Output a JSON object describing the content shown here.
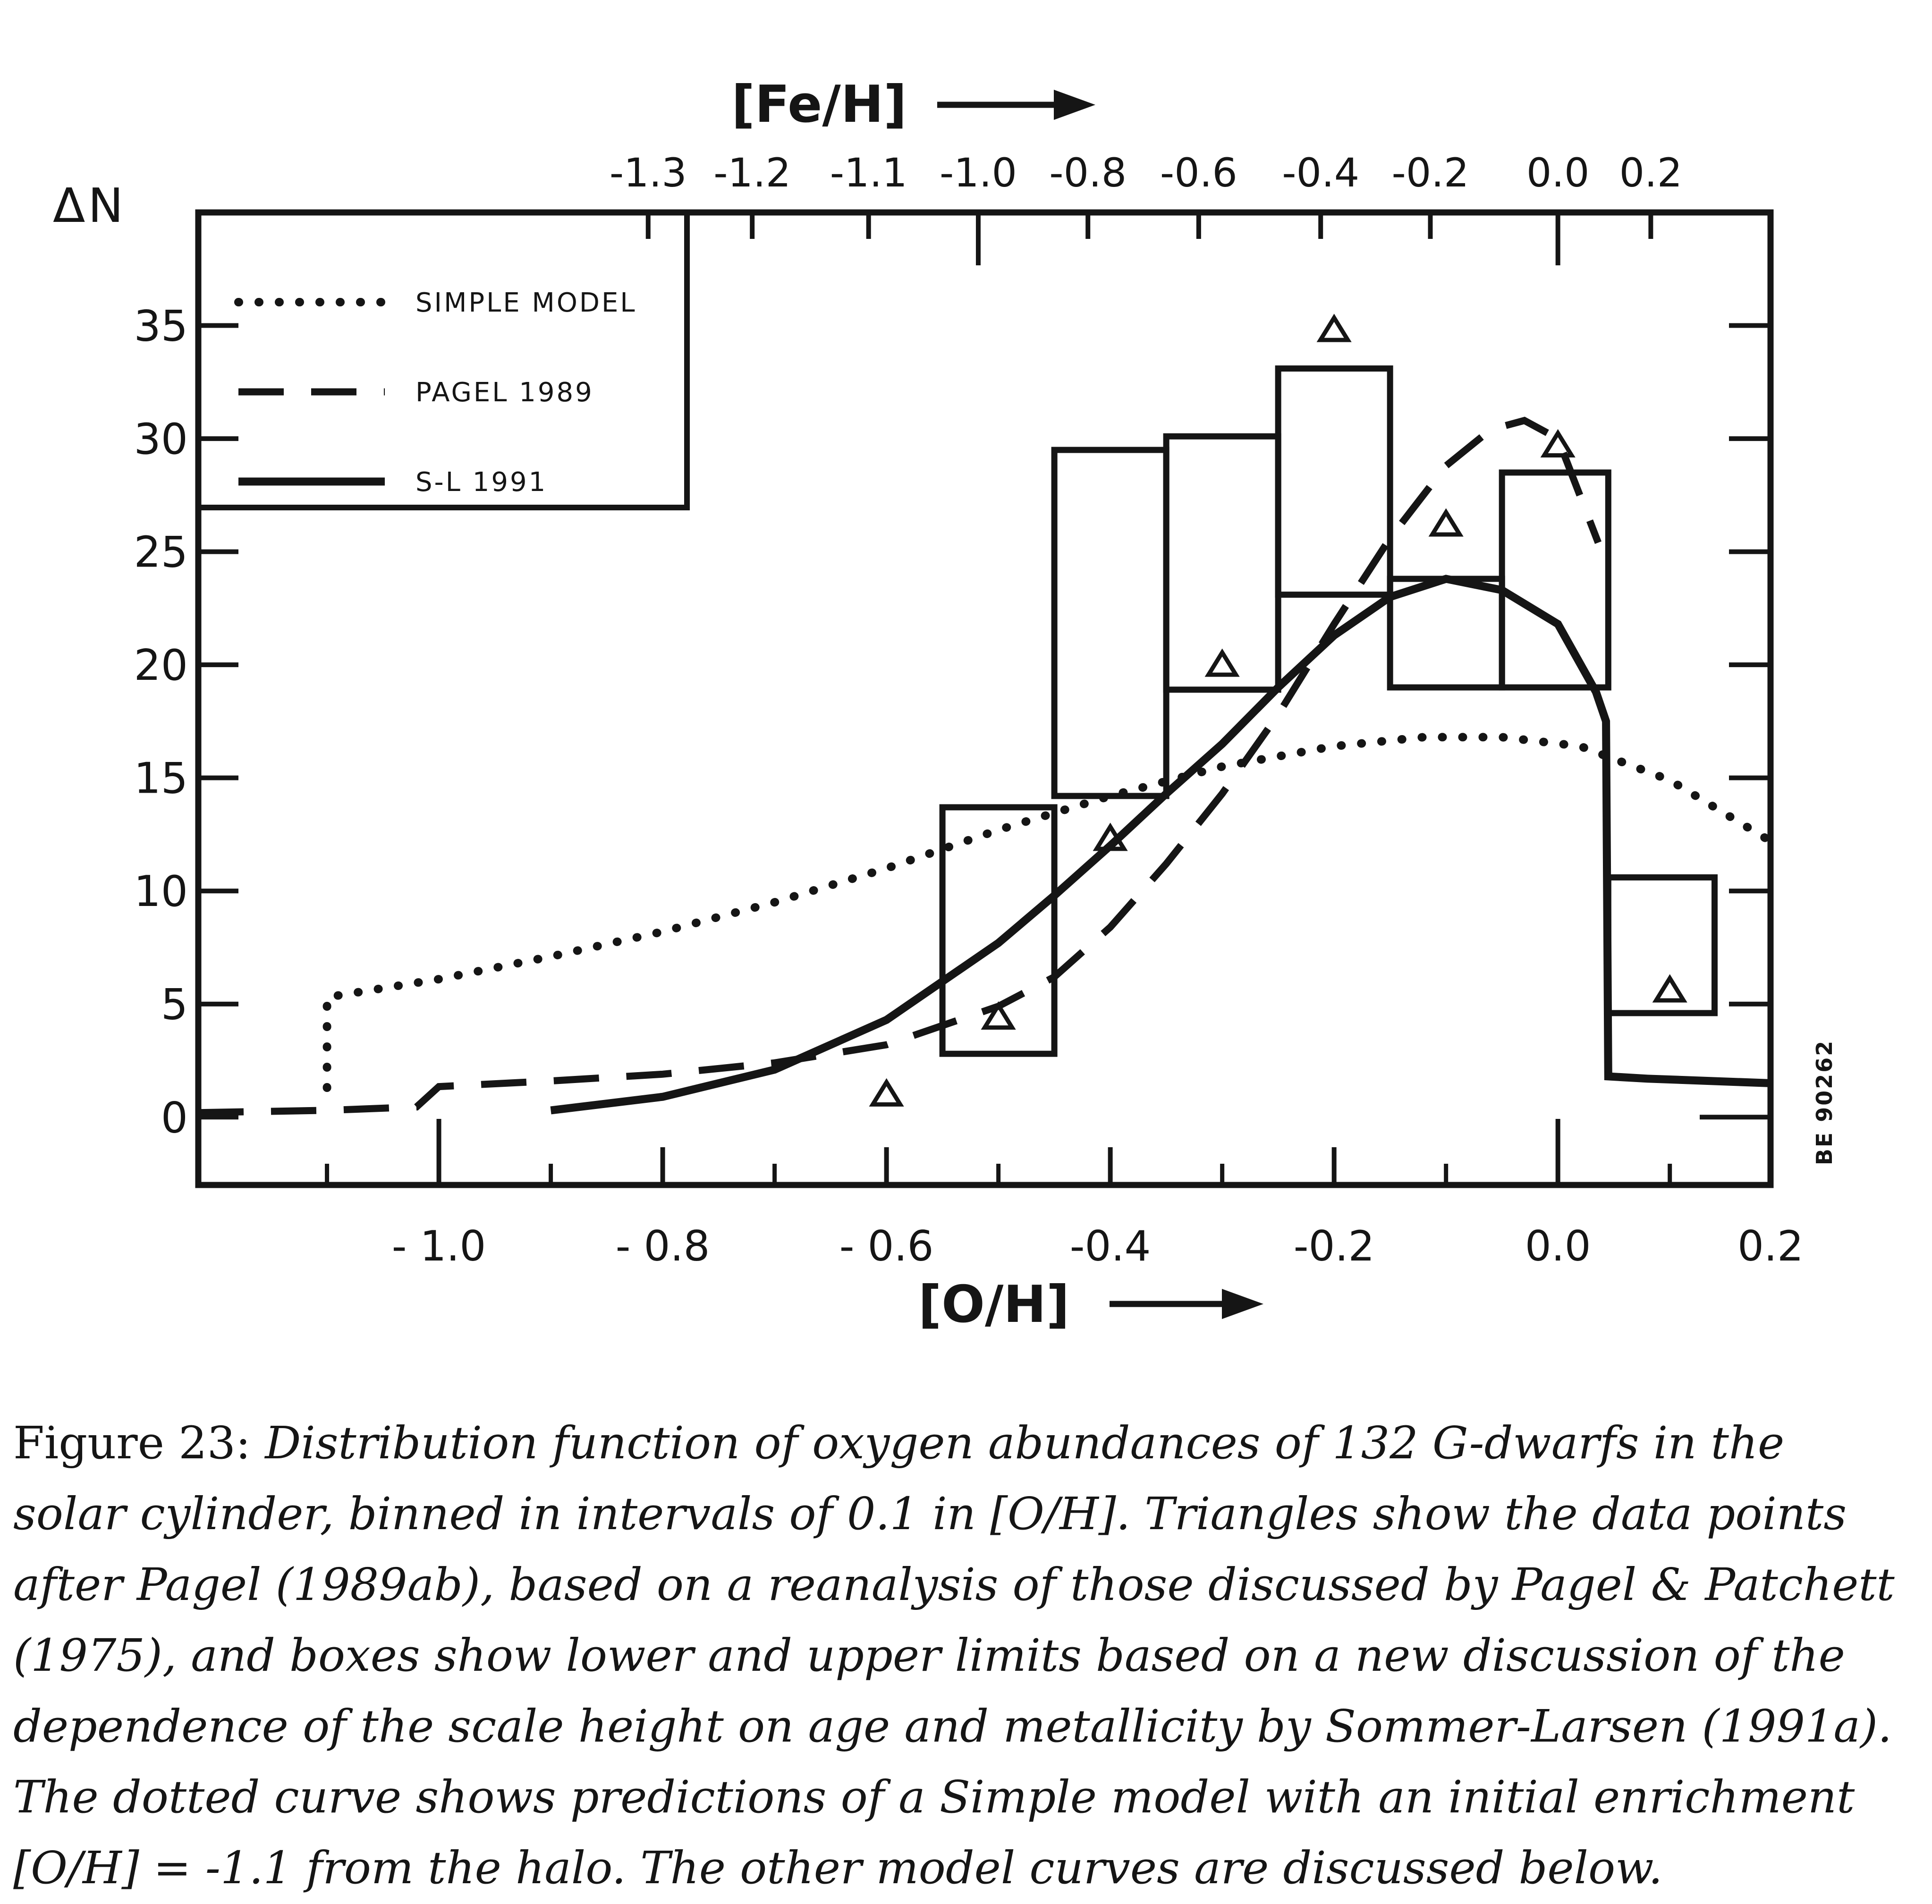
{
  "figure": {
    "y_axis_label": "ΔN",
    "top_axis_label": "[Fe/H]",
    "bottom_axis_label": "[O/H]",
    "plot_id_stamp": "BE 90262"
  },
  "legend": {
    "items": [
      {
        "label": "SIMPLE MODEL",
        "style": "dotted"
      },
      {
        "label": "PAGEL 1989",
        "style": "dashed"
      },
      {
        "label": "S-L  1991",
        "style": "solid"
      }
    ]
  },
  "chart_data": {
    "type": "histogram+line",
    "title": "Distribution function of oxygen abundances of 132 G-dwarfs (binned 0.1 in [O/H])",
    "ylabel": "ΔN",
    "xlabel_bottom": "[O/H]",
    "xlabel_top": "[Fe/H]",
    "x_range_oh": [
      -1.215,
      0.19
    ],
    "y_range": [
      -3,
      40
    ],
    "grid": false,
    "legend_position": "top-left",
    "y_ticks": [
      0,
      5,
      10,
      15,
      20,
      25,
      30,
      35
    ],
    "bottom_ticks": [
      {
        "v": -1.0,
        "label": "- 1.0",
        "len": "long"
      },
      {
        "v": -0.8,
        "label": "- 0.8",
        "len": "major"
      },
      {
        "v": -0.6,
        "label": "- 0.6",
        "len": "major"
      },
      {
        "v": -0.4,
        "label": "-0.4",
        "len": "major"
      },
      {
        "v": -0.2,
        "label": "-0.2",
        "len": "major"
      },
      {
        "v": 0.0,
        "label": "0.0",
        "len": "long"
      },
      {
        "v": 0.19,
        "label": "0.2",
        "len": "none"
      }
    ],
    "bottom_minor_ticks": [
      -1.1,
      -0.9,
      -0.7,
      -0.5,
      -0.3,
      -0.1,
      0.1
    ],
    "top_ticks_fe": [
      {
        "label": "-1.3",
        "oh": -0.813,
        "len": "major"
      },
      {
        "label": "-1.2",
        "oh": -0.72,
        "len": "major"
      },
      {
        "label": "-1.1",
        "oh": -0.616,
        "len": "major"
      },
      {
        "label": "-1.0",
        "oh": -0.518,
        "len": "long"
      },
      {
        "label": "-0.8",
        "oh": -0.42,
        "len": "major"
      },
      {
        "label": "-0.6",
        "oh": -0.321,
        "len": "major"
      },
      {
        "label": "-0.4",
        "oh": -0.212,
        "len": "major"
      },
      {
        "label": "-0.2",
        "oh": -0.114,
        "len": "major"
      },
      {
        "label": "0.0",
        "oh": 0.0,
        "len": "long"
      },
      {
        "label": "0.2",
        "oh": 0.083,
        "len": "major"
      }
    ],
    "limit_boxes": [
      {
        "bin_center": -0.5,
        "x0": -0.55,
        "x1": -0.45,
        "lower": 2.8,
        "upper": 13.7
      },
      {
        "bin_center": -0.4,
        "x0": -0.45,
        "x1": -0.35,
        "lower": 14.2,
        "upper": 29.5
      },
      {
        "bin_center": -0.3,
        "x0": -0.35,
        "x1": -0.25,
        "lower": 18.9,
        "upper": 30.1
      },
      {
        "bin_center": -0.2,
        "x0": -0.25,
        "x1": -0.15,
        "lower": 23.1,
        "upper": 33.1
      },
      {
        "bin_center": -0.1,
        "x0": -0.15,
        "x1": -0.05,
        "lower": 19.0,
        "upper": 23.8
      },
      {
        "bin_center": 0.0,
        "x0": -0.05,
        "x1": 0.045,
        "lower": 19.0,
        "upper": 28.5
      },
      {
        "bin_center": 0.1,
        "x0": 0.045,
        "x1": 0.14,
        "lower": 4.6,
        "upper": 10.6
      }
    ],
    "triangles": [
      {
        "x": -0.6,
        "y": 1.0
      },
      {
        "x": -0.5,
        "y": 4.4
      },
      {
        "x": -0.4,
        "y": 12.3
      },
      {
        "x": -0.3,
        "y": 20.0
      },
      {
        "x": -0.2,
        "y": 34.8
      },
      {
        "x": -0.1,
        "y": 26.2
      },
      {
        "x": 0.0,
        "y": 29.7
      },
      {
        "x": 0.1,
        "y": 5.6
      }
    ],
    "curves": {
      "simple_model": [
        [
          -1.1,
          1.3
        ],
        [
          -1.1,
          5.3
        ],
        [
          -1.05,
          5.7
        ],
        [
          -1.0,
          6.1
        ],
        [
          -0.9,
          7.1
        ],
        [
          -0.8,
          8.2
        ],
        [
          -0.7,
          9.5
        ],
        [
          -0.6,
          11.0
        ],
        [
          -0.5,
          12.7
        ],
        [
          -0.4,
          14.2
        ],
        [
          -0.3,
          15.5
        ],
        [
          -0.2,
          16.4
        ],
        [
          -0.12,
          16.8
        ],
        [
          -0.05,
          16.8
        ],
        [
          0.02,
          16.4
        ],
        [
          0.1,
          14.9
        ],
        [
          0.19,
          12.2
        ]
      ],
      "pagel_1989": [
        [
          -1.215,
          0.2
        ],
        [
          -1.1,
          0.3
        ],
        [
          -1.02,
          0.45
        ],
        [
          -1.0,
          1.35
        ],
        [
          -0.9,
          1.6
        ],
        [
          -0.8,
          1.9
        ],
        [
          -0.7,
          2.4
        ],
        [
          -0.6,
          3.2
        ],
        [
          -0.5,
          4.9
        ],
        [
          -0.45,
          6.2
        ],
        [
          -0.4,
          8.4
        ],
        [
          -0.35,
          11.2
        ],
        [
          -0.3,
          14.3
        ],
        [
          -0.25,
          17.8
        ],
        [
          -0.2,
          21.8
        ],
        [
          -0.15,
          25.6
        ],
        [
          -0.1,
          28.8
        ],
        [
          -0.06,
          30.4
        ],
        [
          -0.03,
          30.8
        ],
        [
          0.0,
          30.0
        ],
        [
          0.036,
          25.4
        ]
      ],
      "s_l_1991": [
        [
          -0.9,
          0.3
        ],
        [
          -0.8,
          0.9
        ],
        [
          -0.7,
          2.1
        ],
        [
          -0.6,
          4.3
        ],
        [
          -0.5,
          7.7
        ],
        [
          -0.45,
          9.8
        ],
        [
          -0.4,
          12.0
        ],
        [
          -0.35,
          14.3
        ],
        [
          -0.3,
          16.5
        ],
        [
          -0.25,
          19.0
        ],
        [
          -0.2,
          21.3
        ],
        [
          -0.15,
          23.0
        ],
        [
          -0.1,
          23.8
        ],
        [
          -0.05,
          23.3
        ],
        [
          0.0,
          21.8
        ],
        [
          0.034,
          18.8
        ],
        [
          0.043,
          17.5
        ],
        [
          0.045,
          1.8
        ],
        [
          0.08,
          1.7
        ],
        [
          0.19,
          1.5
        ]
      ]
    }
  },
  "caption": {
    "figure_label": "Figure 23:",
    "lines": [
      "Distribution function of oxygen abundances of 132 G-dwarfs in the",
      "solar cylinder, binned in intervals of 0.1 in [O/H]. Triangles show the data points",
      "after Pagel (1989ab), based on a reanalysis of those discussed by Pagel & Patchett",
      "(1975), and boxes show lower and upper limits based on a new discussion of the",
      "dependence of the scale height on age and metallicity by Sommer-Larsen (1991a).",
      "The dotted curve shows predictions of a Simple model with an initial enrichment",
      "[O/H] = -1.1 from the halo. The other model curves are discussed below."
    ]
  }
}
